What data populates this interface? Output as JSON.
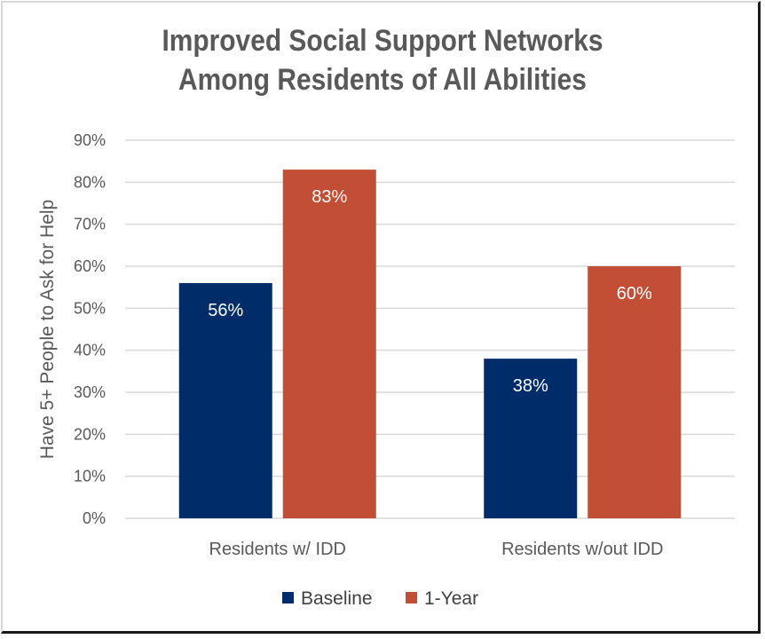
{
  "chart_data": {
    "type": "bar",
    "title": "Improved Social Support Networks Among Residents of All Abilities",
    "title_lines": [
      "Improved Social Support Networks",
      "Among Residents of All Abilities"
    ],
    "xlabel": "",
    "ylabel": "Have 5+ People to Ask for Help",
    "categories": [
      "Residents w/ IDD",
      "Residents w/out IDD"
    ],
    "series": [
      {
        "name": "Baseline",
        "values": [
          56,
          38
        ],
        "labels": [
          "56%",
          "38%"
        ],
        "color": "#002d6a"
      },
      {
        "name": "1-Year",
        "values": [
          83,
          60
        ],
        "labels": [
          "83%",
          "60%"
        ],
        "color": "#c24e35"
      }
    ],
    "ylim": [
      0,
      90
    ],
    "yticks": [
      0,
      10,
      20,
      30,
      40,
      50,
      60,
      70,
      80,
      90
    ],
    "ytick_labels": [
      "0%",
      "10%",
      "20%",
      "30%",
      "40%",
      "50%",
      "60%",
      "70%",
      "80%",
      "90%"
    ],
    "grid": true,
    "grid_color": "#d9d9d9",
    "legend": "bottom"
  }
}
